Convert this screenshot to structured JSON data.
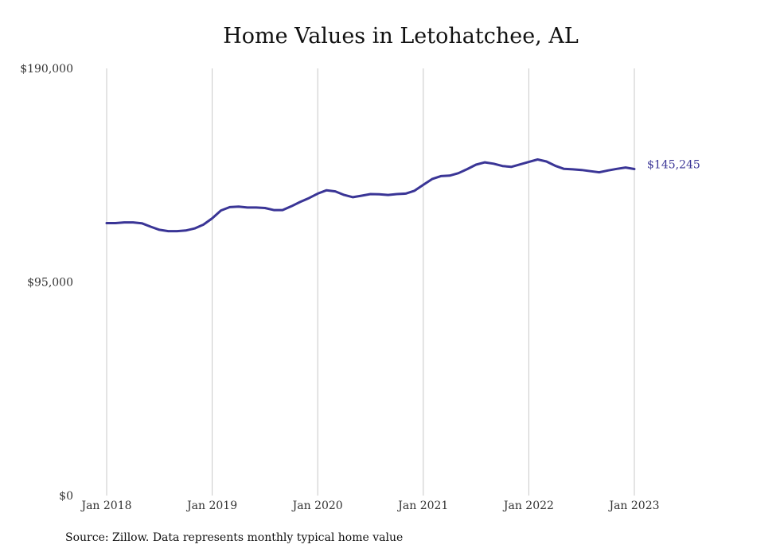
{
  "chart_data": {
    "type": "line",
    "title": "Home Values in Letohatchee, AL",
    "source": "Source: Zillow. Data represents monthly typical home value",
    "ylim": [
      0,
      190000
    ],
    "y_ticks": [
      0,
      95000,
      190000
    ],
    "y_tick_labels": [
      "$0",
      "$95,000",
      "$190,000"
    ],
    "x_start": "2018-01",
    "x_tick_labels": [
      "Jan 2018",
      "Jan 2019",
      "Jan 2020",
      "Jan 2021",
      "Jan 2022",
      "Jan 2023"
    ],
    "grid": "vertical",
    "line_color": "#3a3596",
    "end_label": "$145,245",
    "series": [
      {
        "values": [
          121200,
          121200,
          121500,
          121500,
          121100,
          119600,
          118200,
          117600,
          117600,
          117900,
          118800,
          120500,
          123300,
          126800,
          128300,
          128500,
          128100,
          128100,
          127900,
          127000,
          127000,
          128700,
          130600,
          132300,
          134300,
          135800,
          135300,
          133700,
          132700,
          133400,
          134100,
          134000,
          133700,
          134100,
          134300,
          135600,
          138200,
          140800,
          142100,
          142300,
          143400,
          145200,
          147200,
          148200,
          147600,
          146600,
          146200,
          147300,
          148400,
          149500,
          148600,
          146700,
          145300,
          145100,
          144800,
          144300,
          143800,
          144600,
          145300,
          145900,
          145245
        ]
      }
    ]
  }
}
